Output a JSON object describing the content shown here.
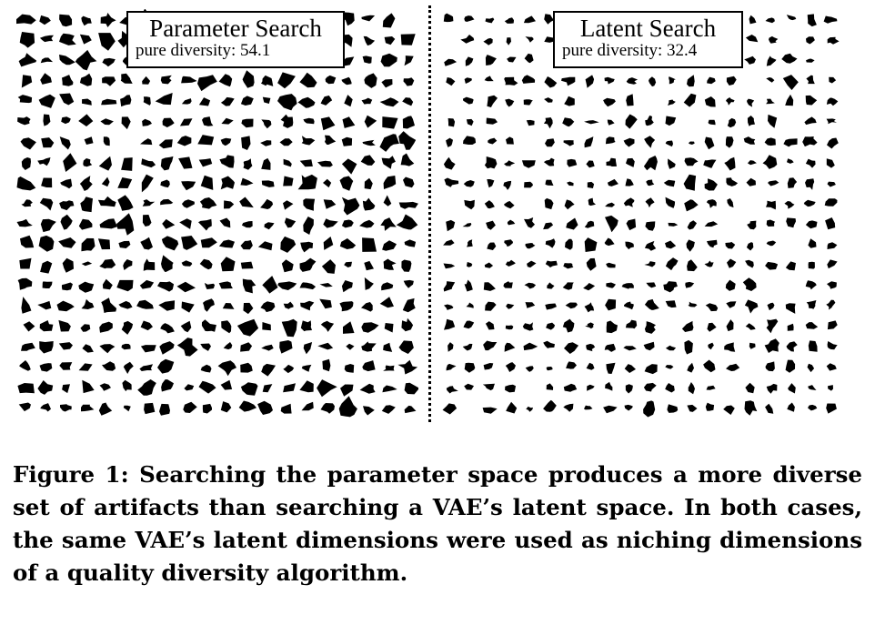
{
  "figure": {
    "left_panel": {
      "title": "Parameter Search",
      "subtitle": "pure diversity: 54.1"
    },
    "right_panel": {
      "title": "Latent Search",
      "subtitle": "pure diversity: 32.4"
    }
  },
  "caption": {
    "text": "Figure 1: Searching the parameter space produces a more diverse set of artifacts than searching a VAE’s latent space. In both cases, the same VAE’s latent dimensions were used as niching dimensions of a quality diversity algorithm."
  },
  "colors": {
    "ink": "#000000",
    "background": "#ffffff"
  }
}
